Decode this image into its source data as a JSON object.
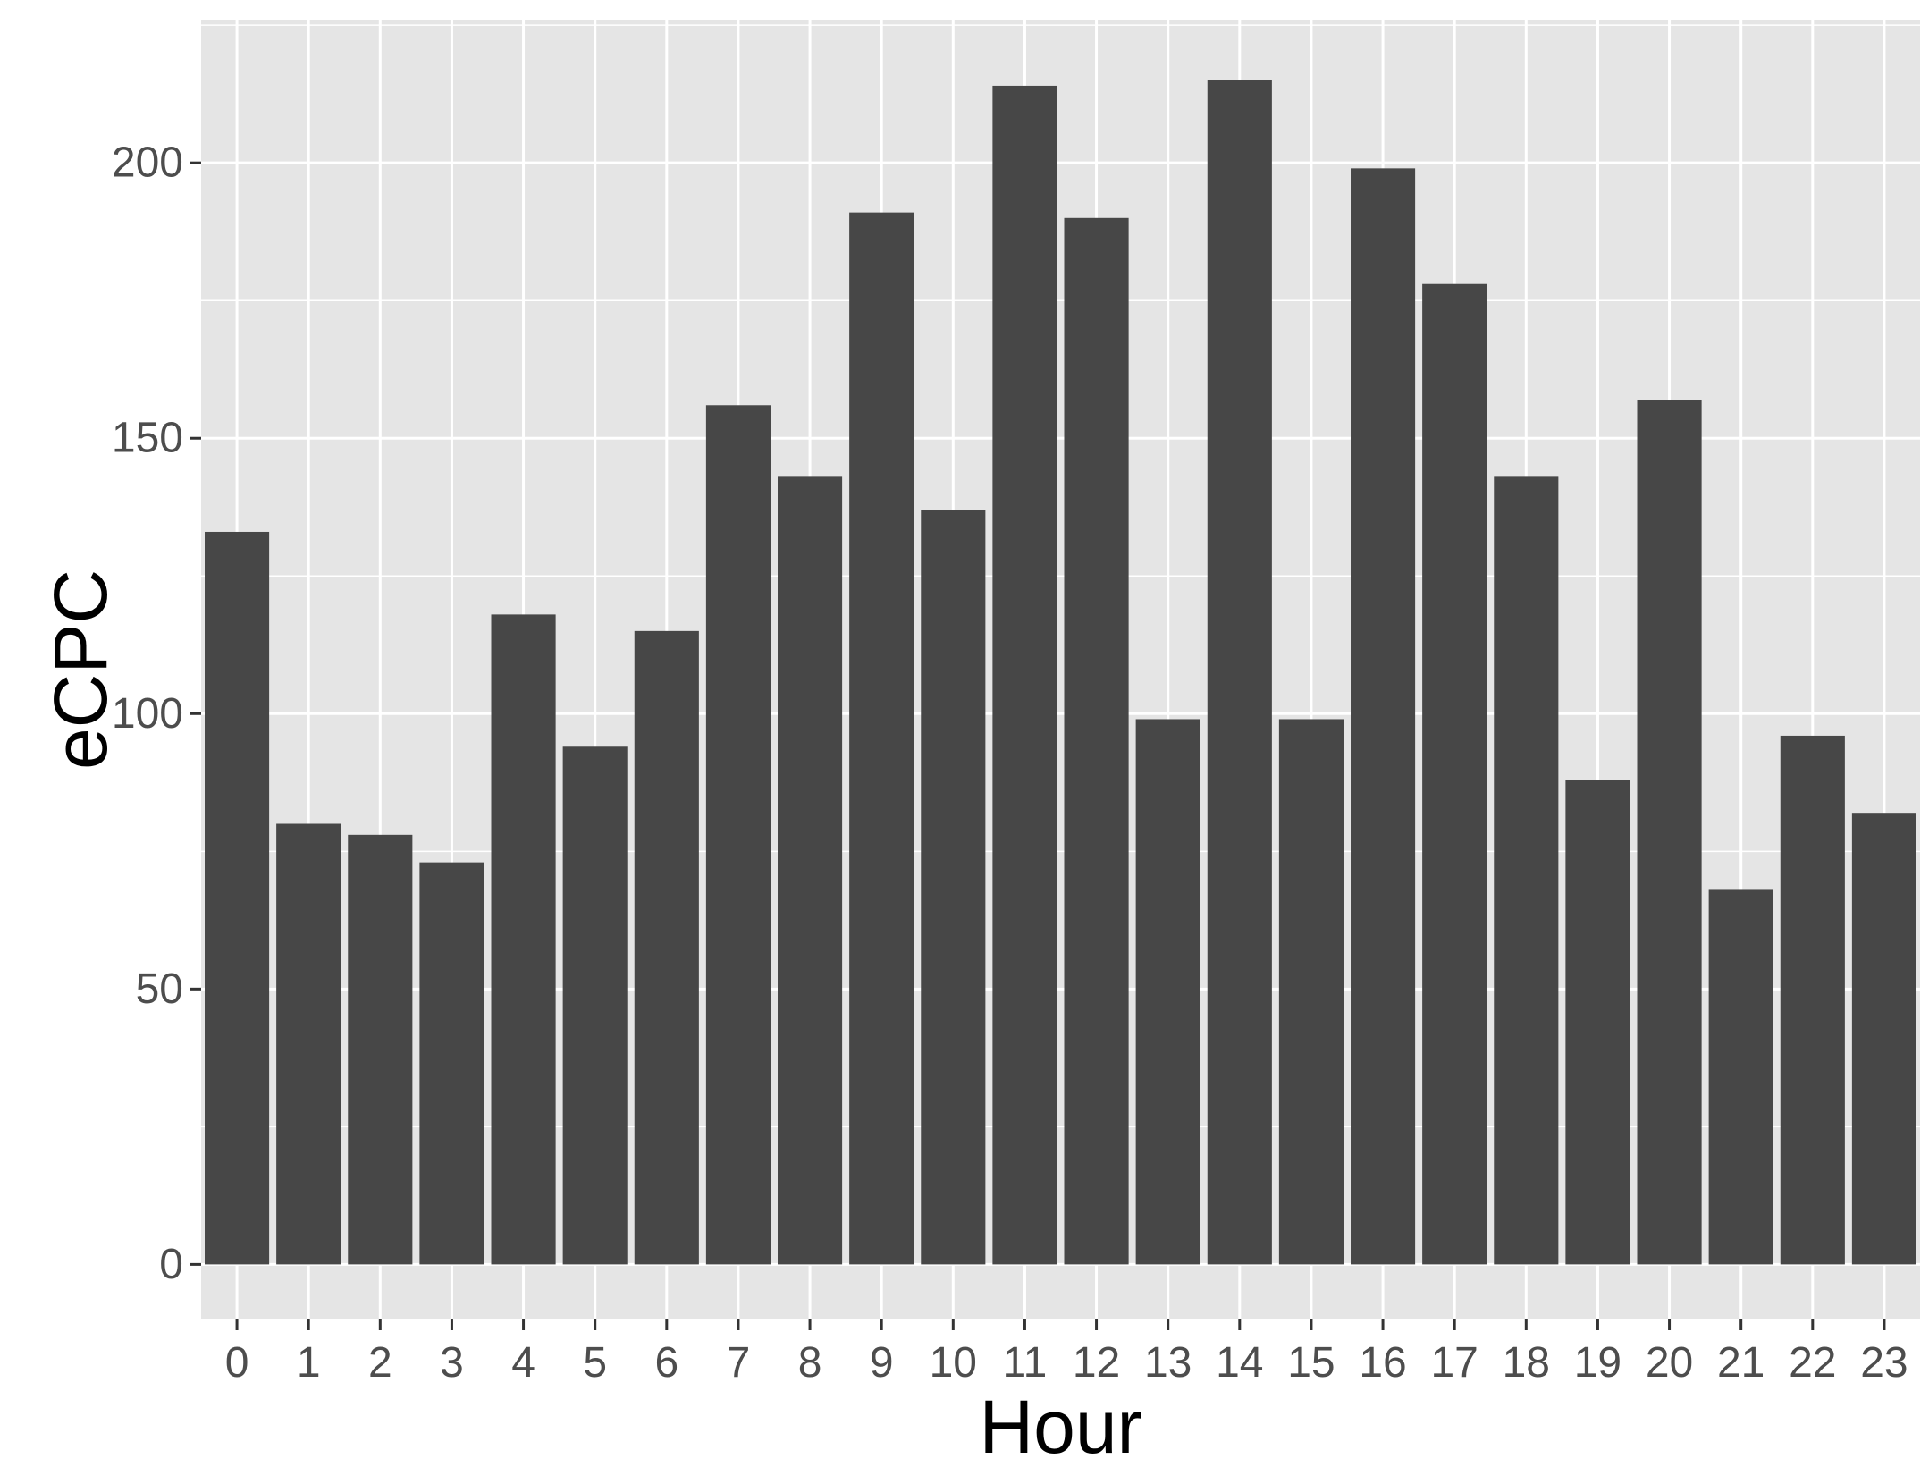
{
  "chart_data": {
    "type": "bar",
    "title": "",
    "xlabel": "Hour",
    "ylabel": "eCPC",
    "categories": [
      "0",
      "1",
      "2",
      "3",
      "4",
      "5",
      "6",
      "7",
      "8",
      "9",
      "10",
      "11",
      "12",
      "13",
      "14",
      "15",
      "16",
      "17",
      "18",
      "19",
      "20",
      "21",
      "22",
      "23"
    ],
    "values": [
      133,
      80,
      78,
      73,
      118,
      94,
      115,
      156,
      143,
      191,
      137,
      214,
      190,
      99,
      215,
      99,
      199,
      178,
      143,
      88,
      157,
      68,
      96,
      82
    ],
    "ylim": [
      -10,
      226
    ],
    "yticks": [
      0,
      50,
      100,
      150,
      200
    ],
    "yticks_minor": [
      25,
      75,
      125,
      175,
      225
    ],
    "grid": true,
    "legend": "none",
    "colors": {
      "panel_background": "#e5e5e5",
      "grid": "#ffffff",
      "bar_fill": "#474747",
      "tick_text": "#4d4d4d",
      "tick_mark": "#333333",
      "title_text": "#000000"
    }
  }
}
